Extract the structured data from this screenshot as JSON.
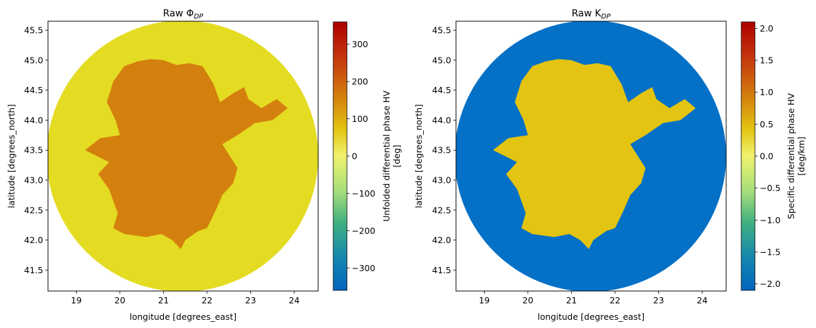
{
  "chart_data": [
    {
      "type": "heatmap",
      "title": "Raw Φ",
      "title_sub": "DP",
      "xlabel": "longitude [degrees_east]",
      "ylabel": "latitude [degrees_north]",
      "xlim": [
        18.35,
        24.55
      ],
      "ylim": [
        41.15,
        45.65
      ],
      "xticks": [
        "19",
        "20",
        "21",
        "22",
        "23",
        "24"
      ],
      "xtick_values": [
        19,
        20,
        21,
        22,
        23,
        24
      ],
      "yticks": [
        "41.5",
        "42.0",
        "42.5",
        "43.0",
        "43.5",
        "44.0",
        "44.5",
        "45.0",
        "45.5"
      ],
      "ytick_values": [
        41.5,
        42.0,
        42.5,
        43.0,
        43.5,
        44.0,
        44.5,
        45.0,
        45.5
      ],
      "colorbar": {
        "label_line1": "Unfolded differential phase HV",
        "label_line2": "[deg]",
        "range": [
          -360,
          360
        ],
        "ticks": [
          "300",
          "200",
          "100",
          "0",
          "−100",
          "−200",
          "−300"
        ],
        "tick_values": [
          300,
          200,
          100,
          0,
          -100,
          -200,
          -300
        ],
        "colormap": "HomeyerRainbow"
      },
      "radar_center": [
        21.45,
        43.4
      ],
      "background_value": 40,
      "echo_value": 150,
      "background_color": "#e4dc22",
      "echo_color": "#d4800e",
      "echo_outline": [
        [
          20.1,
          44.9
        ],
        [
          20.4,
          44.98
        ],
        [
          20.7,
          45.02
        ],
        [
          21.0,
          45.0
        ],
        [
          21.3,
          44.92
        ],
        [
          21.6,
          44.95
        ],
        [
          21.9,
          44.9
        ],
        [
          22.15,
          44.6
        ],
        [
          22.3,
          44.3
        ],
        [
          22.6,
          44.45
        ],
        [
          22.85,
          44.55
        ],
        [
          22.95,
          44.35
        ],
        [
          23.25,
          44.2
        ],
        [
          23.6,
          44.35
        ],
        [
          23.85,
          44.2
        ],
        [
          23.5,
          44.0
        ],
        [
          23.1,
          43.95
        ],
        [
          22.7,
          43.75
        ],
        [
          22.35,
          43.6
        ],
        [
          22.7,
          43.2
        ],
        [
          22.6,
          42.95
        ],
        [
          22.35,
          42.75
        ],
        [
          22.2,
          42.5
        ],
        [
          22.0,
          42.2
        ],
        [
          21.8,
          42.15
        ],
        [
          21.5,
          42.0
        ],
        [
          21.4,
          41.85
        ],
        [
          21.2,
          42.0
        ],
        [
          20.95,
          42.1
        ],
        [
          20.6,
          42.05
        ],
        [
          20.1,
          42.1
        ],
        [
          19.85,
          42.2
        ],
        [
          19.95,
          42.45
        ],
        [
          19.75,
          42.85
        ],
        [
          19.5,
          43.1
        ],
        [
          19.75,
          43.3
        ],
        [
          19.2,
          43.5
        ],
        [
          19.55,
          43.7
        ],
        [
          20.0,
          43.75
        ],
        [
          19.9,
          44.0
        ],
        [
          19.7,
          44.3
        ],
        [
          19.85,
          44.65
        ]
      ]
    },
    {
      "type": "heatmap",
      "title": "Raw K",
      "title_sub": "DP",
      "xlabel": "longitude [degrees_east]",
      "ylabel": "latitude [degrees_north]",
      "xlim": [
        18.35,
        24.55
      ],
      "ylim": [
        41.15,
        45.65
      ],
      "xticks": [
        "19",
        "20",
        "21",
        "22",
        "23",
        "24"
      ],
      "xtick_values": [
        19,
        20,
        21,
        22,
        23,
        24
      ],
      "yticks": [
        "41.5",
        "42.0",
        "42.5",
        "43.0",
        "43.5",
        "44.0",
        "44.5",
        "45.0",
        "45.5"
      ],
      "ytick_values": [
        41.5,
        42.0,
        42.5,
        43.0,
        43.5,
        44.0,
        44.5,
        45.0,
        45.5
      ],
      "colorbar": {
        "label_line1": "Specific differential phase HV",
        "label_line2": "[deg/km]",
        "range": [
          -2.1,
          2.1
        ],
        "ticks": [
          "2.0",
          "1.5",
          "1.0",
          "0.5",
          "0.0",
          "−0.5",
          "−1.0",
          "−1.5",
          "−2.0"
        ],
        "tick_values": [
          2.0,
          1.5,
          1.0,
          0.5,
          0.0,
          -0.5,
          -1.0,
          -1.5,
          -2.0
        ],
        "colormap": "HomeyerRainbow"
      },
      "radar_center": [
        21.45,
        43.4
      ],
      "background_value": -2.1,
      "echo_value": 0.25,
      "background_color": "#0470c6",
      "echo_color": "#e3c412",
      "echo_outline": [
        [
          20.1,
          44.9
        ],
        [
          20.4,
          44.98
        ],
        [
          20.7,
          45.02
        ],
        [
          21.0,
          45.0
        ],
        [
          21.3,
          44.92
        ],
        [
          21.6,
          44.95
        ],
        [
          21.9,
          44.9
        ],
        [
          22.15,
          44.6
        ],
        [
          22.3,
          44.3
        ],
        [
          22.6,
          44.45
        ],
        [
          22.85,
          44.55
        ],
        [
          22.95,
          44.35
        ],
        [
          23.25,
          44.2
        ],
        [
          23.6,
          44.35
        ],
        [
          23.85,
          44.2
        ],
        [
          23.5,
          44.0
        ],
        [
          23.1,
          43.95
        ],
        [
          22.7,
          43.75
        ],
        [
          22.35,
          43.6
        ],
        [
          22.7,
          43.2
        ],
        [
          22.6,
          42.95
        ],
        [
          22.35,
          42.75
        ],
        [
          22.2,
          42.5
        ],
        [
          22.0,
          42.2
        ],
        [
          21.8,
          42.15
        ],
        [
          21.5,
          42.0
        ],
        [
          21.4,
          41.85
        ],
        [
          21.2,
          42.0
        ],
        [
          20.95,
          42.1
        ],
        [
          20.6,
          42.05
        ],
        [
          20.1,
          42.1
        ],
        [
          19.85,
          42.2
        ],
        [
          19.95,
          42.45
        ],
        [
          19.75,
          42.85
        ],
        [
          19.5,
          43.1
        ],
        [
          19.75,
          43.3
        ],
        [
          19.2,
          43.5
        ],
        [
          19.55,
          43.7
        ],
        [
          20.0,
          43.75
        ],
        [
          19.9,
          44.0
        ],
        [
          19.7,
          44.3
        ],
        [
          19.85,
          44.65
        ]
      ]
    }
  ]
}
